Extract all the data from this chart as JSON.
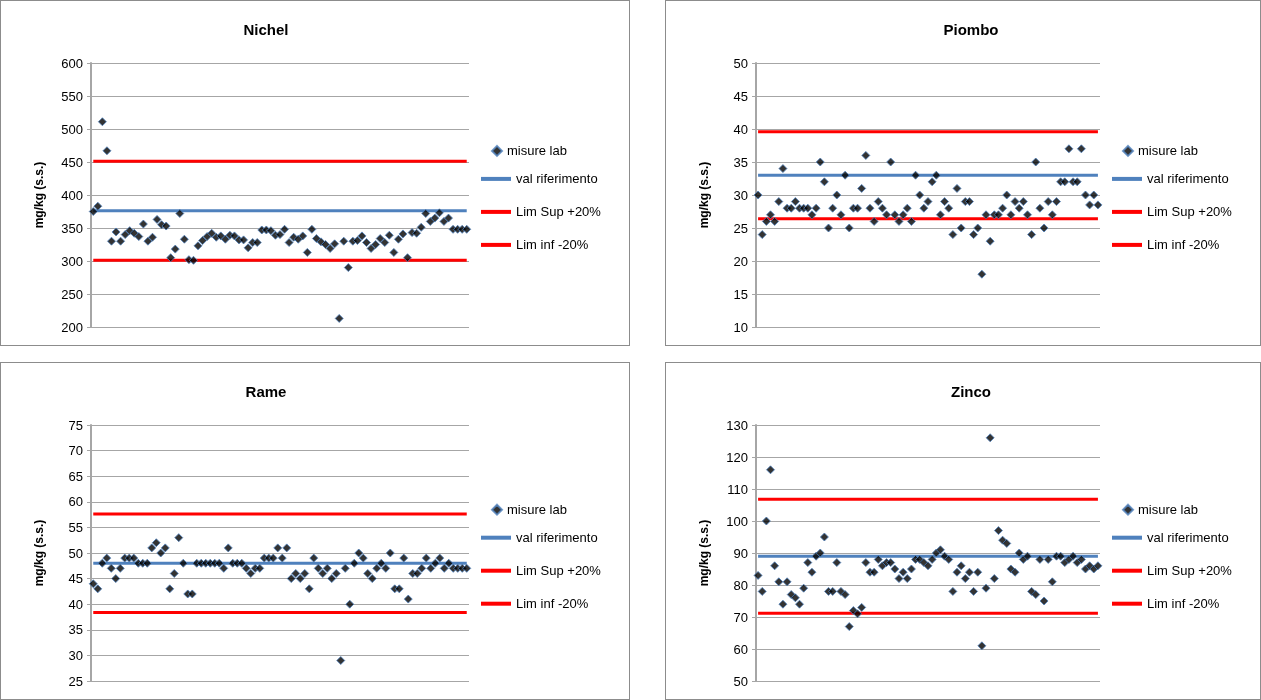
{
  "chart_data": [
    {
      "type": "scatter",
      "title": "Nichel",
      "ylabel": "mg/kg (s.s.)",
      "grid": "y",
      "legend": "right",
      "ylim": [
        200,
        600
      ],
      "yticks": [
        200,
        250,
        300,
        350,
        400,
        450,
        500,
        550,
        600
      ],
      "categories": [
        null,
        null,
        null,
        null,
        null,
        null,
        null,
        null,
        null,
        null,
        null,
        null,
        null,
        null,
        null,
        null,
        null,
        null,
        null,
        null,
        null,
        null,
        null,
        null,
        null,
        null,
        null,
        null,
        null,
        null,
        null,
        null,
        null,
        null,
        null,
        null,
        null,
        null,
        null,
        null,
        null,
        null,
        null,
        null,
        null,
        null,
        null,
        null,
        null,
        null,
        null,
        null,
        null,
        null,
        null,
        null,
        null,
        null,
        null,
        null,
        null,
        null,
        null,
        null,
        null,
        null,
        null,
        null,
        null,
        null,
        null,
        null,
        null,
        null,
        null,
        null,
        null,
        null,
        null,
        null,
        null,
        null,
        null
      ],
      "series": [
        {
          "name": "misure lab",
          "marker": "diamond",
          "color": "#000000",
          "values": [
            375,
            383,
            511,
            467,
            330,
            344,
            330,
            340,
            346,
            342,
            337,
            356,
            330,
            336,
            363,
            355,
            353,
            305,
            318,
            372,
            333,
            302,
            301,
            323,
            331,
            337,
            342,
            336,
            338,
            333,
            339,
            338,
            332,
            332,
            320,
            328,
            328,
            347,
            347,
            346,
            339,
            340,
            348,
            328,
            336,
            333,
            338,
            313,
            348,
            334,
            329,
            325,
            319,
            326,
            213,
            330,
            290,
            330,
            331,
            338,
            328,
            319,
            325,
            334,
            328,
            339,
            313,
            333,
            341,
            305,
            343,
            342,
            351,
            372,
            360,
            365,
            373,
            360,
            365,
            348,
            348,
            348,
            348
          ]
        },
        {
          "type": "line",
          "name": "val riferimento",
          "color": "#4f81bd",
          "values": [
            376,
            376,
            376,
            376,
            376,
            376,
            376,
            376,
            376,
            376,
            376,
            376,
            376,
            376,
            376,
            376,
            376,
            376,
            376,
            376,
            376,
            376,
            376,
            376,
            376,
            376,
            376,
            376,
            376,
            376,
            376,
            376,
            376,
            376,
            376,
            376,
            376,
            376,
            376,
            376,
            376,
            376,
            376,
            376,
            376,
            376,
            376,
            376,
            376,
            376,
            376,
            376,
            376,
            376,
            376,
            376,
            376,
            376,
            376,
            376,
            376,
            376,
            376,
            376,
            376,
            376,
            376,
            376,
            376,
            376,
            376,
            376,
            376,
            376,
            376,
            376,
            376,
            376,
            376,
            376,
            376,
            376,
            376
          ]
        },
        {
          "type": "line",
          "name": "Lim Sup +20%",
          "color": "#ff0000",
          "values": [
            451,
            451,
            451,
            451,
            451,
            451,
            451,
            451,
            451,
            451,
            451,
            451,
            451,
            451,
            451,
            451,
            451,
            451,
            451,
            451,
            451,
            451,
            451,
            451,
            451,
            451,
            451,
            451,
            451,
            451,
            451,
            451,
            451,
            451,
            451,
            451,
            451,
            451,
            451,
            451,
            451,
            451,
            451,
            451,
            451,
            451,
            451,
            451,
            451,
            451,
            451,
            451,
            451,
            451,
            451,
            451,
            451,
            451,
            451,
            451,
            451,
            451,
            451,
            451,
            451,
            451,
            451,
            451,
            451,
            451,
            451,
            451,
            451,
            451,
            451,
            451,
            451,
            451,
            451,
            451,
            451,
            451,
            451
          ]
        },
        {
          "type": "line",
          "name": "Lim inf -20%",
          "color": "#ff0000",
          "values": [
            301,
            301,
            301,
            301,
            301,
            301,
            301,
            301,
            301,
            301,
            301,
            301,
            301,
            301,
            301,
            301,
            301,
            301,
            301,
            301,
            301,
            301,
            301,
            301,
            301,
            301,
            301,
            301,
            301,
            301,
            301,
            301,
            301,
            301,
            301,
            301,
            301,
            301,
            301,
            301,
            301,
            301,
            301,
            301,
            301,
            301,
            301,
            301,
            301,
            301,
            301,
            301,
            301,
            301,
            301,
            301,
            301,
            301,
            301,
            301,
            301,
            301,
            301,
            301,
            301,
            301,
            301,
            301,
            301,
            301,
            301,
            301,
            301,
            301,
            301,
            301,
            301,
            301,
            301,
            301,
            301,
            301,
            301
          ]
        }
      ]
    },
    {
      "type": "scatter",
      "title": "Piombo",
      "ylabel": "mg/kg (s.s.)",
      "grid": "y",
      "legend": "right",
      "ylim": [
        10,
        50
      ],
      "yticks": [
        10,
        15,
        20,
        25,
        30,
        35,
        40,
        45,
        50
      ],
      "categories": [
        null,
        null,
        null,
        null,
        null,
        null,
        null,
        null,
        null,
        null,
        null,
        null,
        null,
        null,
        null,
        null,
        null,
        null,
        null,
        null,
        null,
        null,
        null,
        null,
        null,
        null,
        null,
        null,
        null,
        null,
        null,
        null,
        null,
        null,
        null,
        null,
        null,
        null,
        null,
        null,
        null,
        null,
        null,
        null,
        null,
        null,
        null,
        null,
        null,
        null,
        null,
        null,
        null,
        null,
        null,
        null,
        null,
        null,
        null,
        null,
        null,
        null,
        null,
        null,
        null,
        null,
        null,
        null,
        null,
        null,
        null,
        null,
        null,
        null,
        null,
        null,
        null,
        null,
        null,
        null,
        null,
        null,
        null
      ],
      "series": [
        {
          "name": "misure lab",
          "marker": "diamond",
          "color": "#000000",
          "values": [
            30,
            24,
            26,
            27,
            26,
            29,
            34,
            28,
            28,
            29,
            28,
            28,
            28,
            27,
            28,
            35,
            32,
            25,
            28,
            30,
            27,
            33,
            25,
            28,
            28,
            31,
            36,
            28,
            26,
            29,
            28,
            27,
            35,
            27,
            26,
            27,
            28,
            26,
            33,
            30,
            28,
            29,
            32,
            33,
            27,
            29,
            28,
            24,
            31,
            25,
            29,
            29,
            24,
            25,
            18,
            27,
            23,
            27,
            27,
            28,
            30,
            27,
            29,
            28,
            29,
            27,
            24,
            35,
            28,
            25,
            29,
            27,
            29,
            32,
            32,
            37,
            32,
            32,
            37,
            30,
            28.5,
            30,
            28.5
          ]
        },
        {
          "type": "line",
          "name": "val riferimento",
          "color": "#4f81bd",
          "values": [
            33,
            33,
            33,
            33,
            33,
            33,
            33,
            33,
            33,
            33,
            33,
            33,
            33,
            33,
            33,
            33,
            33,
            33,
            33,
            33,
            33,
            33,
            33,
            33,
            33,
            33,
            33,
            33,
            33,
            33,
            33,
            33,
            33,
            33,
            33,
            33,
            33,
            33,
            33,
            33,
            33,
            33,
            33,
            33,
            33,
            33,
            33,
            33,
            33,
            33,
            33,
            33,
            33,
            33,
            33,
            33,
            33,
            33,
            33,
            33,
            33,
            33,
            33,
            33,
            33,
            33,
            33,
            33,
            33,
            33,
            33,
            33,
            33,
            33,
            33,
            33,
            33,
            33,
            33,
            33,
            33,
            33,
            33
          ]
        },
        {
          "type": "line",
          "name": "Lim Sup +20%",
          "color": "#ff0000",
          "values": [
            39.6,
            39.6,
            39.6,
            39.6,
            39.6,
            39.6,
            39.6,
            39.6,
            39.6,
            39.6,
            39.6,
            39.6,
            39.6,
            39.6,
            39.6,
            39.6,
            39.6,
            39.6,
            39.6,
            39.6,
            39.6,
            39.6,
            39.6,
            39.6,
            39.6,
            39.6,
            39.6,
            39.6,
            39.6,
            39.6,
            39.6,
            39.6,
            39.6,
            39.6,
            39.6,
            39.6,
            39.6,
            39.6,
            39.6,
            39.6,
            39.6,
            39.6,
            39.6,
            39.6,
            39.6,
            39.6,
            39.6,
            39.6,
            39.6,
            39.6,
            39.6,
            39.6,
            39.6,
            39.6,
            39.6,
            39.6,
            39.6,
            39.6,
            39.6,
            39.6,
            39.6,
            39.6,
            39.6,
            39.6,
            39.6,
            39.6,
            39.6,
            39.6,
            39.6,
            39.6,
            39.6,
            39.6,
            39.6,
            39.6,
            39.6,
            39.6,
            39.6,
            39.6,
            39.6,
            39.6,
            39.6,
            39.6,
            39.6
          ]
        },
        {
          "type": "line",
          "name": "Lim inf -20%",
          "color": "#ff0000",
          "values": [
            26.4,
            26.4,
            26.4,
            26.4,
            26.4,
            26.4,
            26.4,
            26.4,
            26.4,
            26.4,
            26.4,
            26.4,
            26.4,
            26.4,
            26.4,
            26.4,
            26.4,
            26.4,
            26.4,
            26.4,
            26.4,
            26.4,
            26.4,
            26.4,
            26.4,
            26.4,
            26.4,
            26.4,
            26.4,
            26.4,
            26.4,
            26.4,
            26.4,
            26.4,
            26.4,
            26.4,
            26.4,
            26.4,
            26.4,
            26.4,
            26.4,
            26.4,
            26.4,
            26.4,
            26.4,
            26.4,
            26.4,
            26.4,
            26.4,
            26.4,
            26.4,
            26.4,
            26.4,
            26.4,
            26.4,
            26.4,
            26.4,
            26.4,
            26.4,
            26.4,
            26.4,
            26.4,
            26.4,
            26.4,
            26.4,
            26.4,
            26.4,
            26.4,
            26.4,
            26.4,
            26.4,
            26.4,
            26.4,
            26.4,
            26.4,
            26.4,
            26.4,
            26.4,
            26.4,
            26.4,
            26.4,
            26.4,
            26.4
          ]
        }
      ]
    },
    {
      "type": "scatter",
      "title": "Rame",
      "ylabel": "mg/kg (s.s.)",
      "grid": "y",
      "legend": "right",
      "ylim": [
        25,
        75
      ],
      "yticks": [
        25,
        30,
        35,
        40,
        45,
        50,
        55,
        60,
        65,
        70,
        75
      ],
      "categories": [
        null,
        null,
        null,
        null,
        null,
        null,
        null,
        null,
        null,
        null,
        null,
        null,
        null,
        null,
        null,
        null,
        null,
        null,
        null,
        null,
        null,
        null,
        null,
        null,
        null,
        null,
        null,
        null,
        null,
        null,
        null,
        null,
        null,
        null,
        null,
        null,
        null,
        null,
        null,
        null,
        null,
        null,
        null,
        null,
        null,
        null,
        null,
        null,
        null,
        null,
        null,
        null,
        null,
        null,
        null,
        null,
        null,
        null,
        null,
        null,
        null,
        null,
        null,
        null,
        null,
        null,
        null,
        null,
        null,
        null,
        null,
        null,
        null,
        null,
        null,
        null,
        null,
        null,
        null,
        null,
        null,
        null,
        null,
        null
      ],
      "series": [
        {
          "name": "misure lab",
          "marker": "diamond",
          "color": "#000000",
          "values": [
            44,
            43,
            48,
            49,
            47,
            45,
            47,
            49,
            49,
            49,
            48,
            48,
            48,
            51,
            52,
            50,
            51,
            43,
            46,
            53,
            48,
            42,
            42,
            48,
            48,
            48,
            48,
            48,
            48,
            47,
            51,
            48,
            48,
            48,
            47,
            46,
            47,
            47,
            49,
            49,
            49,
            51,
            49,
            51,
            45,
            46,
            45,
            46,
            43,
            49,
            47,
            46,
            47,
            45,
            46,
            29,
            47,
            40,
            48,
            50,
            49,
            46,
            45,
            47,
            48,
            47,
            50,
            43,
            43,
            49,
            41,
            46,
            46,
            47,
            49,
            47,
            48,
            49,
            47,
            48,
            47,
            47,
            47,
            47
          ]
        },
        {
          "type": "line",
          "name": "val riferimento",
          "color": "#4f81bd",
          "values": [
            48,
            48,
            48,
            48,
            48,
            48,
            48,
            48,
            48,
            48,
            48,
            48,
            48,
            48,
            48,
            48,
            48,
            48,
            48,
            48,
            48,
            48,
            48,
            48,
            48,
            48,
            48,
            48,
            48,
            48,
            48,
            48,
            48,
            48,
            48,
            48,
            48,
            48,
            48,
            48,
            48,
            48,
            48,
            48,
            48,
            48,
            48,
            48,
            48,
            48,
            48,
            48,
            48,
            48,
            48,
            48,
            48,
            48,
            48,
            48,
            48,
            48,
            48,
            48,
            48,
            48,
            48,
            48,
            48,
            48,
            48,
            48,
            48,
            48,
            48,
            48,
            48,
            48,
            48,
            48,
            48,
            48,
            48,
            48
          ]
        },
        {
          "type": "line",
          "name": "Lim Sup +20%",
          "color": "#ff0000",
          "values": [
            57.6,
            57.6,
            57.6,
            57.6,
            57.6,
            57.6,
            57.6,
            57.6,
            57.6,
            57.6,
            57.6,
            57.6,
            57.6,
            57.6,
            57.6,
            57.6,
            57.6,
            57.6,
            57.6,
            57.6,
            57.6,
            57.6,
            57.6,
            57.6,
            57.6,
            57.6,
            57.6,
            57.6,
            57.6,
            57.6,
            57.6,
            57.6,
            57.6,
            57.6,
            57.6,
            57.6,
            57.6,
            57.6,
            57.6,
            57.6,
            57.6,
            57.6,
            57.6,
            57.6,
            57.6,
            57.6,
            57.6,
            57.6,
            57.6,
            57.6,
            57.6,
            57.6,
            57.6,
            57.6,
            57.6,
            57.6,
            57.6,
            57.6,
            57.6,
            57.6,
            57.6,
            57.6,
            57.6,
            57.6,
            57.6,
            57.6,
            57.6,
            57.6,
            57.6,
            57.6,
            57.6,
            57.6,
            57.6,
            57.6,
            57.6,
            57.6,
            57.6,
            57.6,
            57.6,
            57.6,
            57.6,
            57.6,
            57.6,
            57.6
          ]
        },
        {
          "type": "line",
          "name": "Lim inf -20%",
          "color": "#ff0000",
          "values": [
            38.4,
            38.4,
            38.4,
            38.4,
            38.4,
            38.4,
            38.4,
            38.4,
            38.4,
            38.4,
            38.4,
            38.4,
            38.4,
            38.4,
            38.4,
            38.4,
            38.4,
            38.4,
            38.4,
            38.4,
            38.4,
            38.4,
            38.4,
            38.4,
            38.4,
            38.4,
            38.4,
            38.4,
            38.4,
            38.4,
            38.4,
            38.4,
            38.4,
            38.4,
            38.4,
            38.4,
            38.4,
            38.4,
            38.4,
            38.4,
            38.4,
            38.4,
            38.4,
            38.4,
            38.4,
            38.4,
            38.4,
            38.4,
            38.4,
            38.4,
            38.4,
            38.4,
            38.4,
            38.4,
            38.4,
            38.4,
            38.4,
            38.4,
            38.4,
            38.4,
            38.4,
            38.4,
            38.4,
            38.4,
            38.4,
            38.4,
            38.4,
            38.4,
            38.4,
            38.4,
            38.4,
            38.4,
            38.4,
            38.4,
            38.4,
            38.4,
            38.4,
            38.4,
            38.4,
            38.4,
            38.4,
            38.4,
            38.4,
            38.4
          ]
        }
      ]
    },
    {
      "type": "scatter",
      "title": "Zinco",
      "ylabel": "mg/kg (s.s.)",
      "grid": "y",
      "legend": "right",
      "ylim": [
        50,
        130
      ],
      "yticks": [
        50,
        60,
        70,
        80,
        90,
        100,
        110,
        120,
        130
      ],
      "categories": [
        null,
        null,
        null,
        null,
        null,
        null,
        null,
        null,
        null,
        null,
        null,
        null,
        null,
        null,
        null,
        null,
        null,
        null,
        null,
        null,
        null,
        null,
        null,
        null,
        null,
        null,
        null,
        null,
        null,
        null,
        null,
        null,
        null,
        null,
        null,
        null,
        null,
        null,
        null,
        null,
        null,
        null,
        null,
        null,
        null,
        null,
        null,
        null,
        null,
        null,
        null,
        null,
        null,
        null,
        null,
        null,
        null,
        null,
        null,
        null,
        null,
        null,
        null,
        null,
        null,
        null,
        null,
        null,
        null,
        null,
        null,
        null,
        null,
        null,
        null,
        null,
        null,
        null,
        null,
        null,
        null,
        null,
        null
      ],
      "series": [
        {
          "name": "misure lab",
          "marker": "diamond",
          "color": "#000000",
          "values": [
            83,
            78,
            100,
            116,
            86,
            81,
            74,
            81,
            77,
            76,
            74,
            79,
            87,
            84,
            89,
            90,
            95,
            78,
            78,
            87,
            78,
            77,
            67,
            72,
            71,
            73,
            87,
            84,
            84,
            88,
            86,
            87,
            87,
            85,
            82,
            84,
            82,
            85,
            88,
            88,
            87,
            86,
            88,
            90,
            91,
            89,
            88,
            78,
            84,
            86,
            82,
            84,
            78,
            84,
            61,
            79,
            126,
            82,
            97,
            94,
            93,
            85,
            84,
            90,
            88,
            89,
            78,
            77,
            88,
            75,
            88,
            81,
            89,
            89,
            87,
            88,
            89,
            87,
            88,
            85,
            86,
            85,
            86
          ]
        },
        {
          "type": "line",
          "name": "val riferimento",
          "color": "#4f81bd",
          "values": [
            89,
            89,
            89,
            89,
            89,
            89,
            89,
            89,
            89,
            89,
            89,
            89,
            89,
            89,
            89,
            89,
            89,
            89,
            89,
            89,
            89,
            89,
            89,
            89,
            89,
            89,
            89,
            89,
            89,
            89,
            89,
            89,
            89,
            89,
            89,
            89,
            89,
            89,
            89,
            89,
            89,
            89,
            89,
            89,
            89,
            89,
            89,
            89,
            89,
            89,
            89,
            89,
            89,
            89,
            89,
            89,
            89,
            89,
            89,
            89,
            89,
            89,
            89,
            89,
            89,
            89,
            89,
            89,
            89,
            89,
            89,
            89,
            89,
            89,
            89,
            89,
            89,
            89,
            89,
            89,
            89,
            89,
            89
          ]
        },
        {
          "type": "line",
          "name": "Lim Sup +20%",
          "color": "#ff0000",
          "values": [
            106.8,
            106.8,
            106.8,
            106.8,
            106.8,
            106.8,
            106.8,
            106.8,
            106.8,
            106.8,
            106.8,
            106.8,
            106.8,
            106.8,
            106.8,
            106.8,
            106.8,
            106.8,
            106.8,
            106.8,
            106.8,
            106.8,
            106.8,
            106.8,
            106.8,
            106.8,
            106.8,
            106.8,
            106.8,
            106.8,
            106.8,
            106.8,
            106.8,
            106.8,
            106.8,
            106.8,
            106.8,
            106.8,
            106.8,
            106.8,
            106.8,
            106.8,
            106.8,
            106.8,
            106.8,
            106.8,
            106.8,
            106.8,
            106.8,
            106.8,
            106.8,
            106.8,
            106.8,
            106.8,
            106.8,
            106.8,
            106.8,
            106.8,
            106.8,
            106.8,
            106.8,
            106.8,
            106.8,
            106.8,
            106.8,
            106.8,
            106.8,
            106.8,
            106.8,
            106.8,
            106.8,
            106.8,
            106.8,
            106.8,
            106.8,
            106.8,
            106.8,
            106.8,
            106.8,
            106.8,
            106.8,
            106.8,
            106.8
          ]
        },
        {
          "type": "line",
          "name": "Lim inf -20%",
          "color": "#ff0000",
          "values": [
            71.2,
            71.2,
            71.2,
            71.2,
            71.2,
            71.2,
            71.2,
            71.2,
            71.2,
            71.2,
            71.2,
            71.2,
            71.2,
            71.2,
            71.2,
            71.2,
            71.2,
            71.2,
            71.2,
            71.2,
            71.2,
            71.2,
            71.2,
            71.2,
            71.2,
            71.2,
            71.2,
            71.2,
            71.2,
            71.2,
            71.2,
            71.2,
            71.2,
            71.2,
            71.2,
            71.2,
            71.2,
            71.2,
            71.2,
            71.2,
            71.2,
            71.2,
            71.2,
            71.2,
            71.2,
            71.2,
            71.2,
            71.2,
            71.2,
            71.2,
            71.2,
            71.2,
            71.2,
            71.2,
            71.2,
            71.2,
            71.2,
            71.2,
            71.2,
            71.2,
            71.2,
            71.2,
            71.2,
            71.2,
            71.2,
            71.2,
            71.2,
            71.2,
            71.2,
            71.2,
            71.2,
            71.2,
            71.2,
            71.2,
            71.2,
            71.2,
            71.2,
            71.2,
            71.2,
            71.2,
            71.2,
            71.2,
            71.2
          ]
        }
      ]
    }
  ]
}
